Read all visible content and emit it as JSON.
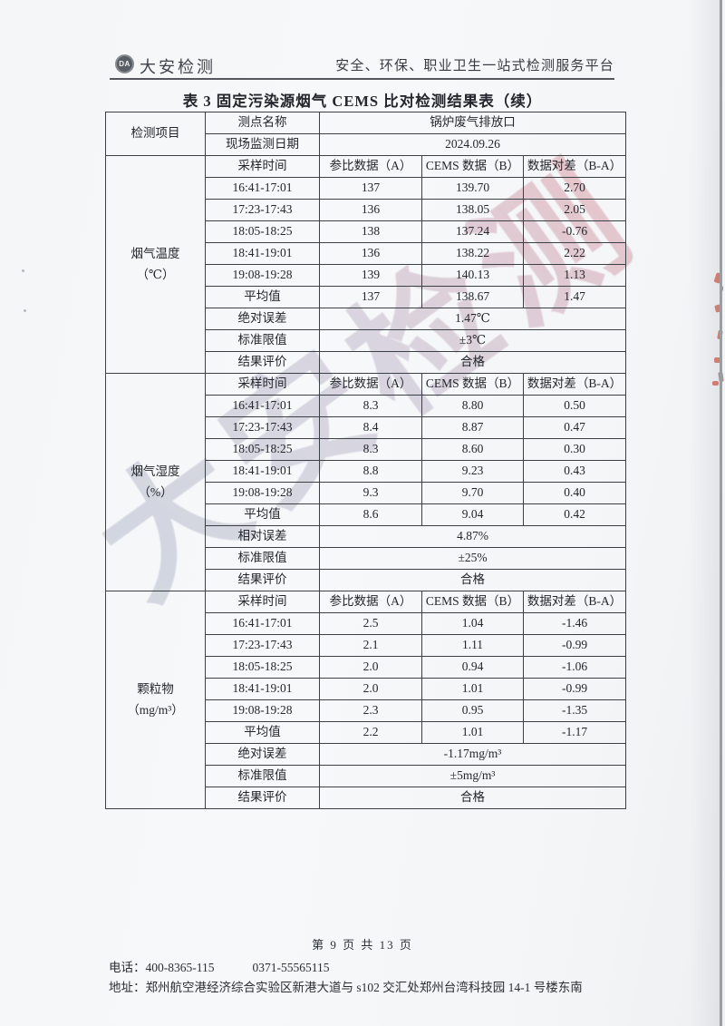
{
  "header": {
    "logo_badge": "DA",
    "logo_text": "大安检测",
    "tagline": "安全、环保、职业卫生一站式检测服务平台"
  },
  "table": {
    "title": "表 3 固定污染源烟气 CEMS 比对检测结果表（续）",
    "corner_label": "检测项目",
    "info_rows": [
      {
        "label": "测点名称",
        "value": "锅炉废气排放口"
      },
      {
        "label": "现场监测日期",
        "value": "2024.09.26"
      }
    ],
    "columns": [
      "采样时间",
      "参比数据（A）",
      "CEMS 数据（B）",
      "数据对差（B-A）"
    ],
    "sections": [
      {
        "parameter": "烟气温度",
        "unit": "（℃）",
        "rows": [
          [
            "16:41-17:01",
            "137",
            "139.70",
            "2.70"
          ],
          [
            "17:23-17:43",
            "136",
            "138.05",
            "2.05"
          ],
          [
            "18:05-18:25",
            "138",
            "137.24",
            "-0.76"
          ],
          [
            "18:41-19:01",
            "136",
            "138.22",
            "2.22"
          ],
          [
            "19:08-19:28",
            "139",
            "140.13",
            "1.13"
          ],
          [
            "平均值",
            "137",
            "138.67",
            "1.47"
          ]
        ],
        "summary": [
          {
            "label": "绝对误差",
            "value": "1.47℃"
          },
          {
            "label": "标准限值",
            "value": "±3℃"
          },
          {
            "label": "结果评价",
            "value": "合格"
          }
        ]
      },
      {
        "parameter": "烟气湿度",
        "unit": "（%）",
        "rows": [
          [
            "16:41-17:01",
            "8.3",
            "8.80",
            "0.50"
          ],
          [
            "17:23-17:43",
            "8.4",
            "8.87",
            "0.47"
          ],
          [
            "18:05-18:25",
            "8.3",
            "8.60",
            "0.30"
          ],
          [
            "18:41-19:01",
            "8.8",
            "9.23",
            "0.43"
          ],
          [
            "19:08-19:28",
            "9.3",
            "9.70",
            "0.40"
          ],
          [
            "平均值",
            "8.6",
            "9.04",
            "0.42"
          ]
        ],
        "summary": [
          {
            "label": "相对误差",
            "value": "4.87%"
          },
          {
            "label": "标准限值",
            "value": "±25%"
          },
          {
            "label": "结果评价",
            "value": "合格"
          }
        ]
      },
      {
        "parameter": "颗粒物",
        "unit": "（mg/m³）",
        "rows": [
          [
            "16:41-17:01",
            "2.5",
            "1.04",
            "-1.46"
          ],
          [
            "17:23-17:43",
            "2.1",
            "1.11",
            "-0.99"
          ],
          [
            "18:05-18:25",
            "2.0",
            "0.94",
            "-1.06"
          ],
          [
            "18:41-19:01",
            "2.0",
            "1.01",
            "-0.99"
          ],
          [
            "19:08-19:28",
            "2.3",
            "0.95",
            "-1.35"
          ],
          [
            "平均值",
            "2.2",
            "1.01",
            "-1.17"
          ]
        ],
        "summary": [
          {
            "label": "绝对误差",
            "value": "-1.17mg/m³"
          },
          {
            "label": "标准限值",
            "value": "±5mg/m³"
          },
          {
            "label": "结果评价",
            "value": "合格"
          }
        ]
      }
    ]
  },
  "watermark": {
    "text": "大安检测"
  },
  "footer": {
    "page_info": "第 9 页 共 13 页",
    "phone_label": "电话：",
    "phone1": "400-8365-115",
    "phone2": "0371-55565115",
    "address": "地址：郑州航空港经济综合实验区新港大道与 s102 交汇处郑州台湾科技园 14-1 号楼东南"
  },
  "colors": {
    "table_border": "#3b4044",
    "red_ink_artifact": "#d4574a",
    "text": "#24282c"
  }
}
